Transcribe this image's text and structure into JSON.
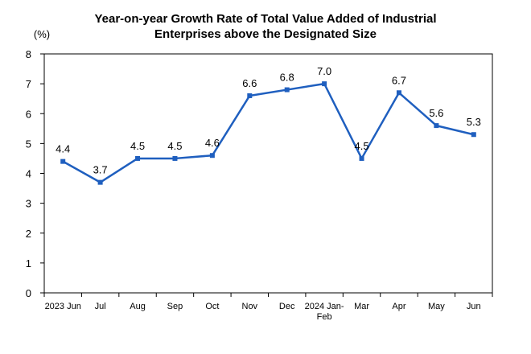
{
  "chart_data": {
    "type": "line",
    "title_lines": [
      "Year-on-year Growth Rate of Total Value Added of Industrial",
      "Enterprises above the Designated Size"
    ],
    "unit_label": "(%)",
    "categories": [
      [
        "2023 Jun"
      ],
      [
        "Jul"
      ],
      [
        "Aug"
      ],
      [
        "Sep"
      ],
      [
        "Oct"
      ],
      [
        "Nov"
      ],
      [
        "Dec"
      ],
      [
        "2024 Jan-",
        "Feb"
      ],
      [
        "Mar"
      ],
      [
        "Apr"
      ],
      [
        "May"
      ],
      [
        "Jun"
      ]
    ],
    "values": [
      4.4,
      3.7,
      4.5,
      4.5,
      4.6,
      6.6,
      6.8,
      7.0,
      4.5,
      6.7,
      5.6,
      5.3
    ],
    "data_labels": [
      "4.4",
      "3.7",
      "4.5",
      "4.5",
      "4.6",
      "6.6",
      "6.8",
      "7.0",
      "4.5",
      "6.7",
      "5.6",
      "5.3"
    ],
    "ylim": [
      0,
      8
    ],
    "yticks": [
      0,
      1,
      2,
      3,
      4,
      5,
      6,
      7,
      8
    ],
    "grid": false,
    "legend": "none",
    "line_color": "#1f5fbf",
    "marker_color": "#1f5fbf",
    "axis_color": "#000000"
  }
}
